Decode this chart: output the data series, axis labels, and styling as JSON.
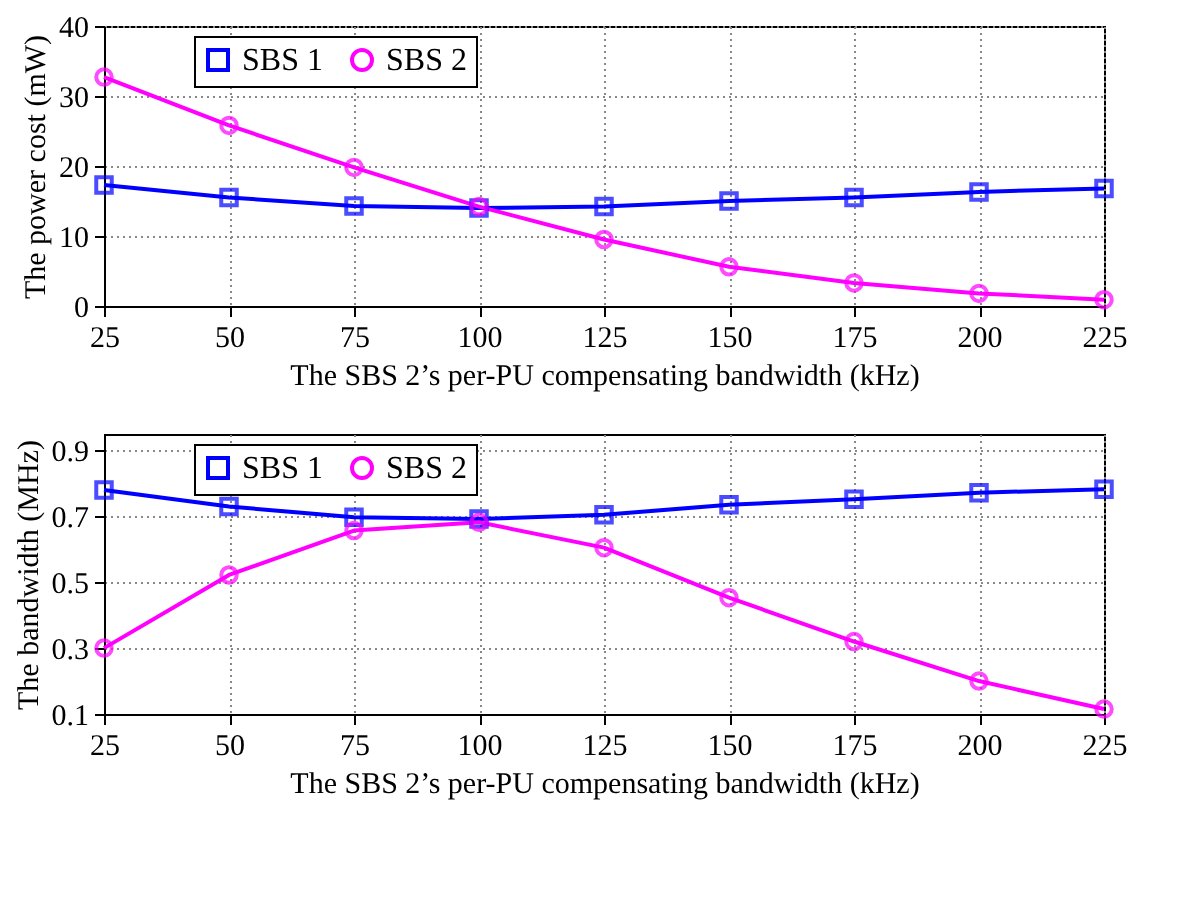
{
  "chart_data": [
    {
      "type": "line",
      "x": [
        25,
        50,
        75,
        100,
        125,
        150,
        175,
        200,
        225
      ],
      "xlabel": "The SBS 2’s per-PU compensating bandwidth (kHz)",
      "ylabel": "The power cost (mW)",
      "xlim": [
        25,
        225
      ],
      "xticks": [
        25,
        50,
        75,
        100,
        125,
        150,
        175,
        200,
        225
      ],
      "ylim": [
        0,
        40
      ],
      "yticks": [
        0,
        10,
        20,
        30,
        40
      ],
      "grid": true,
      "legend": "top left",
      "series": [
        {
          "name": "SBS 1",
          "color": "#0000ff",
          "marker": "square",
          "values": [
            17.3,
            15.5,
            14.3,
            14.0,
            14.2,
            15.0,
            15.5,
            16.3,
            16.8
          ]
        },
        {
          "name": "SBS 2",
          "color": "#ff00ff",
          "marker": "circle",
          "values": [
            32.7,
            25.8,
            19.8,
            14.2,
            9.5,
            5.6,
            3.3,
            1.8,
            0.9
          ]
        }
      ]
    },
    {
      "type": "line",
      "x": [
        25,
        50,
        75,
        100,
        125,
        150,
        175,
        200,
        225
      ],
      "xlabel": "The SBS 2’s per-PU compensating bandwidth (kHz)",
      "ylabel": "The bandwidth (MHz)",
      "xlim": [
        25,
        225
      ],
      "xticks": [
        25,
        50,
        75,
        100,
        125,
        150,
        175,
        200,
        225
      ],
      "ylim": [
        0.1,
        0.95
      ],
      "yticks": [
        0.1,
        0.3,
        0.5,
        0.7,
        0.9
      ],
      "grid": true,
      "legend": "top left",
      "series": [
        {
          "name": "SBS 1",
          "color": "#0000ff",
          "marker": "square",
          "values": [
            0.78,
            0.73,
            0.697,
            0.692,
            0.705,
            0.735,
            0.752,
            0.772,
            0.782
          ]
        },
        {
          "name": "SBS 2",
          "color": "#ff00ff",
          "marker": "circle",
          "values": [
            0.3,
            0.522,
            0.657,
            0.682,
            0.605,
            0.453,
            0.32,
            0.2,
            0.115
          ]
        }
      ]
    }
  ]
}
